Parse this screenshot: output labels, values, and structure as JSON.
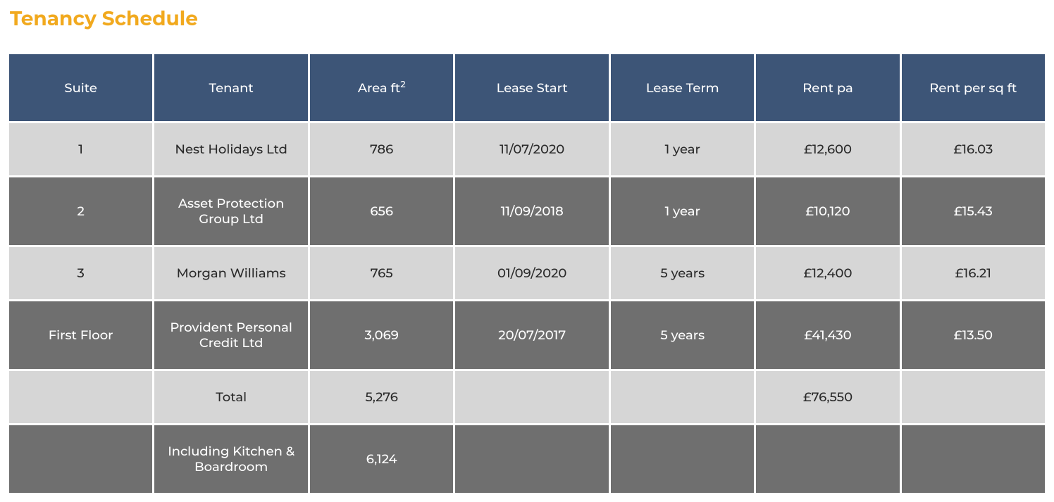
{
  "title": "Tenancy Schedule",
  "title_color": "#f1a91e",
  "title_fontsize": 28,
  "table": {
    "header_bg": "#3d5577",
    "header_fg": "#ffffff",
    "row_light_bg": "#d6d6d6",
    "row_light_fg": "#2a2a2a",
    "row_dark_bg": "#6f6f6f",
    "row_dark_fg": "#ffffff",
    "cell_fontsize": 18,
    "columns": [
      {
        "key": "suite",
        "label": "Suite"
      },
      {
        "key": "tenant",
        "label": "Tenant"
      },
      {
        "key": "area",
        "label": "Area ft²"
      },
      {
        "key": "lease_start",
        "label": "Lease Start"
      },
      {
        "key": "lease_term",
        "label": "Lease Term"
      },
      {
        "key": "rent_pa",
        "label": "Rent pa"
      },
      {
        "key": "rent_sqft",
        "label": "Rent per sq ft"
      }
    ],
    "rows": [
      {
        "style": "light",
        "suite": "1",
        "tenant": "Nest Holidays Ltd",
        "area": "786",
        "lease_start": "11/07/2020",
        "lease_term": "1 year",
        "rent_pa": "£12,600",
        "rent_sqft": "£16.03"
      },
      {
        "style": "dark",
        "suite": "2",
        "tenant": "Asset Protection Group Ltd",
        "area": "656",
        "lease_start": "11/09/2018",
        "lease_term": "1 year",
        "rent_pa": "£10,120",
        "rent_sqft": "£15.43"
      },
      {
        "style": "light",
        "suite": "3",
        "tenant": "Morgan Williams",
        "area": "765",
        "lease_start": "01/09/2020",
        "lease_term": "5 years",
        "rent_pa": "£12,400",
        "rent_sqft": "£16.21"
      },
      {
        "style": "dark",
        "suite": "First Floor",
        "tenant": "Provident Personal Credit Ltd",
        "area": "3,069",
        "lease_start": "20/07/2017",
        "lease_term": "5 years",
        "rent_pa": "£41,430",
        "rent_sqft": "£13.50"
      },
      {
        "style": "light",
        "suite": "",
        "tenant": "Total",
        "area": "5,276",
        "lease_start": "",
        "lease_term": "",
        "rent_pa": "£76,550",
        "rent_sqft": ""
      },
      {
        "style": "dark",
        "suite": "",
        "tenant": "Including Kitchen & Boardroom",
        "area": "6,124",
        "lease_start": "",
        "lease_term": "",
        "rent_pa": "",
        "rent_sqft": ""
      }
    ]
  }
}
